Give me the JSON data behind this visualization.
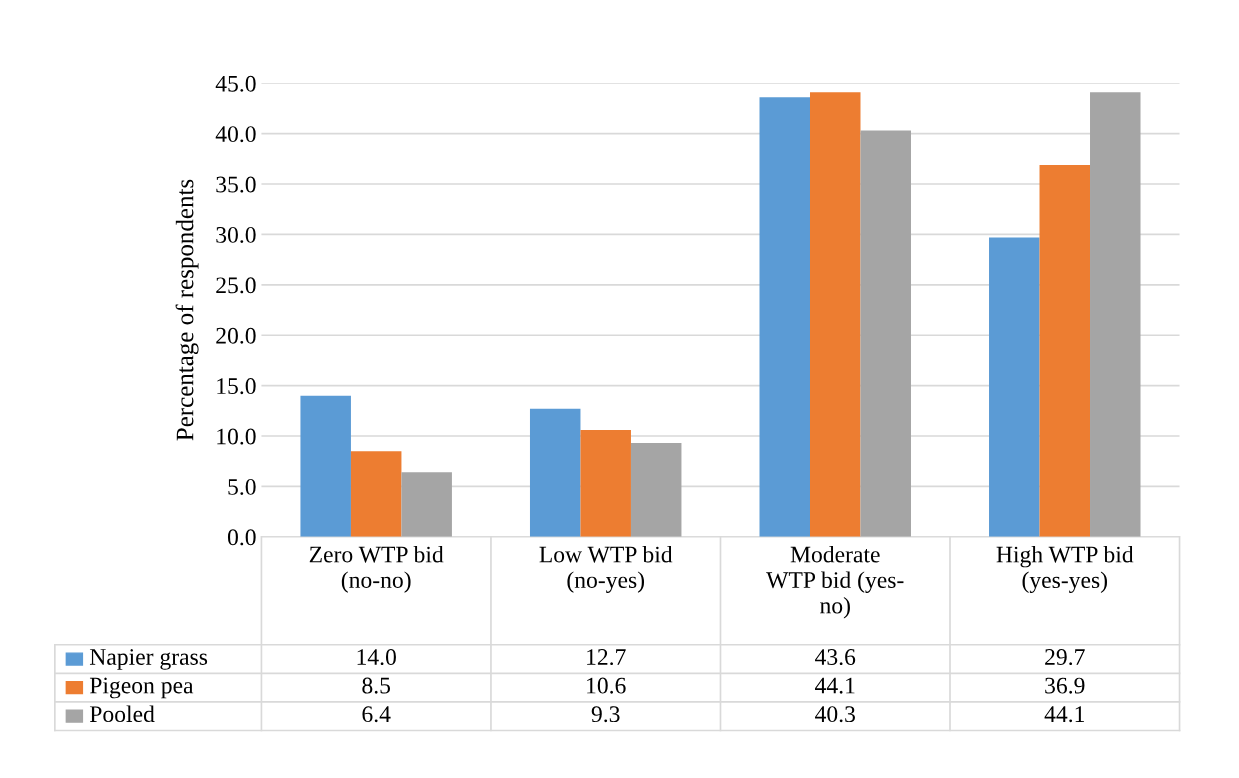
{
  "chart_data": {
    "type": "bar",
    "ylabel": "Percentage of respondents",
    "categories": [
      "Zero WTP bid\n(no-no)",
      "Low WTP bid\n(no-yes)",
      "Moderate\nWTP bid (yes-\nno)",
      "High WTP bid\n(yes-yes)"
    ],
    "series": [
      {
        "name": "Napier grass",
        "color": "#5b9bd5",
        "values": [
          14.0,
          12.7,
          43.6,
          29.7
        ],
        "value_labels": [
          "14.0",
          "12.7",
          "43.6",
          "29.7"
        ]
      },
      {
        "name": "Pigeon pea",
        "color": "#ed7d31",
        "values": [
          8.5,
          10.6,
          44.1,
          36.9
        ],
        "value_labels": [
          "8.5",
          "10.6",
          "44.1",
          "36.9"
        ]
      },
      {
        "name": "Pooled",
        "color": "#a5a5a5",
        "values": [
          6.4,
          9.3,
          40.3,
          44.1
        ],
        "value_labels": [
          "6.4",
          "9.3",
          "40.3",
          "44.1"
        ]
      }
    ],
    "ylim": [
      0,
      45
    ],
    "yticks": [
      {
        "value": 0,
        "label": "0.0"
      },
      {
        "value": 5,
        "label": "5.0"
      },
      {
        "value": 10,
        "label": "10.0"
      },
      {
        "value": 15,
        "label": "15.0"
      },
      {
        "value": 20,
        "label": "20.0"
      },
      {
        "value": 25,
        "label": "25.0"
      },
      {
        "value": 30,
        "label": "30.0"
      },
      {
        "value": 35,
        "label": "35.0"
      },
      {
        "value": 40,
        "label": "40.0"
      },
      {
        "value": 45,
        "label": "45.0"
      }
    ],
    "grid": "y",
    "legend": "bottom"
  }
}
